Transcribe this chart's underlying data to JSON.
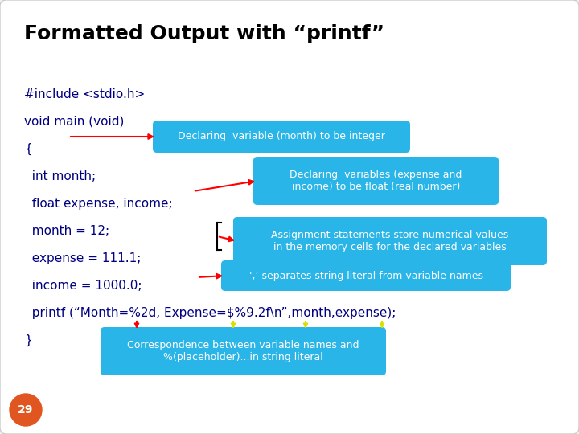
{
  "title": "Formatted Output with “printf”",
  "background_color": "#f0f0f0",
  "slide_bg": "#ffffff",
  "title_color": "#000000",
  "code_color": "#000080",
  "code_lines": [
    "#include <stdio.h>",
    "void main (void)",
    "{",
    "  int month;",
    "  float expense, income;",
    "  month = 12;",
    "  expense = 111.1;",
    "  income = 1000.0;",
    "  printf (“Month=%2d, Expense=$%9.2f\\n”,month,expense);",
    "}"
  ],
  "bubble_color": "#29b5e8",
  "bubble_text_color": "#ffffff",
  "page_number": "29",
  "page_bg": "#e05520",
  "title_fontsize": 18,
  "code_fontsize": 11,
  "bubble_fontsize": 9
}
